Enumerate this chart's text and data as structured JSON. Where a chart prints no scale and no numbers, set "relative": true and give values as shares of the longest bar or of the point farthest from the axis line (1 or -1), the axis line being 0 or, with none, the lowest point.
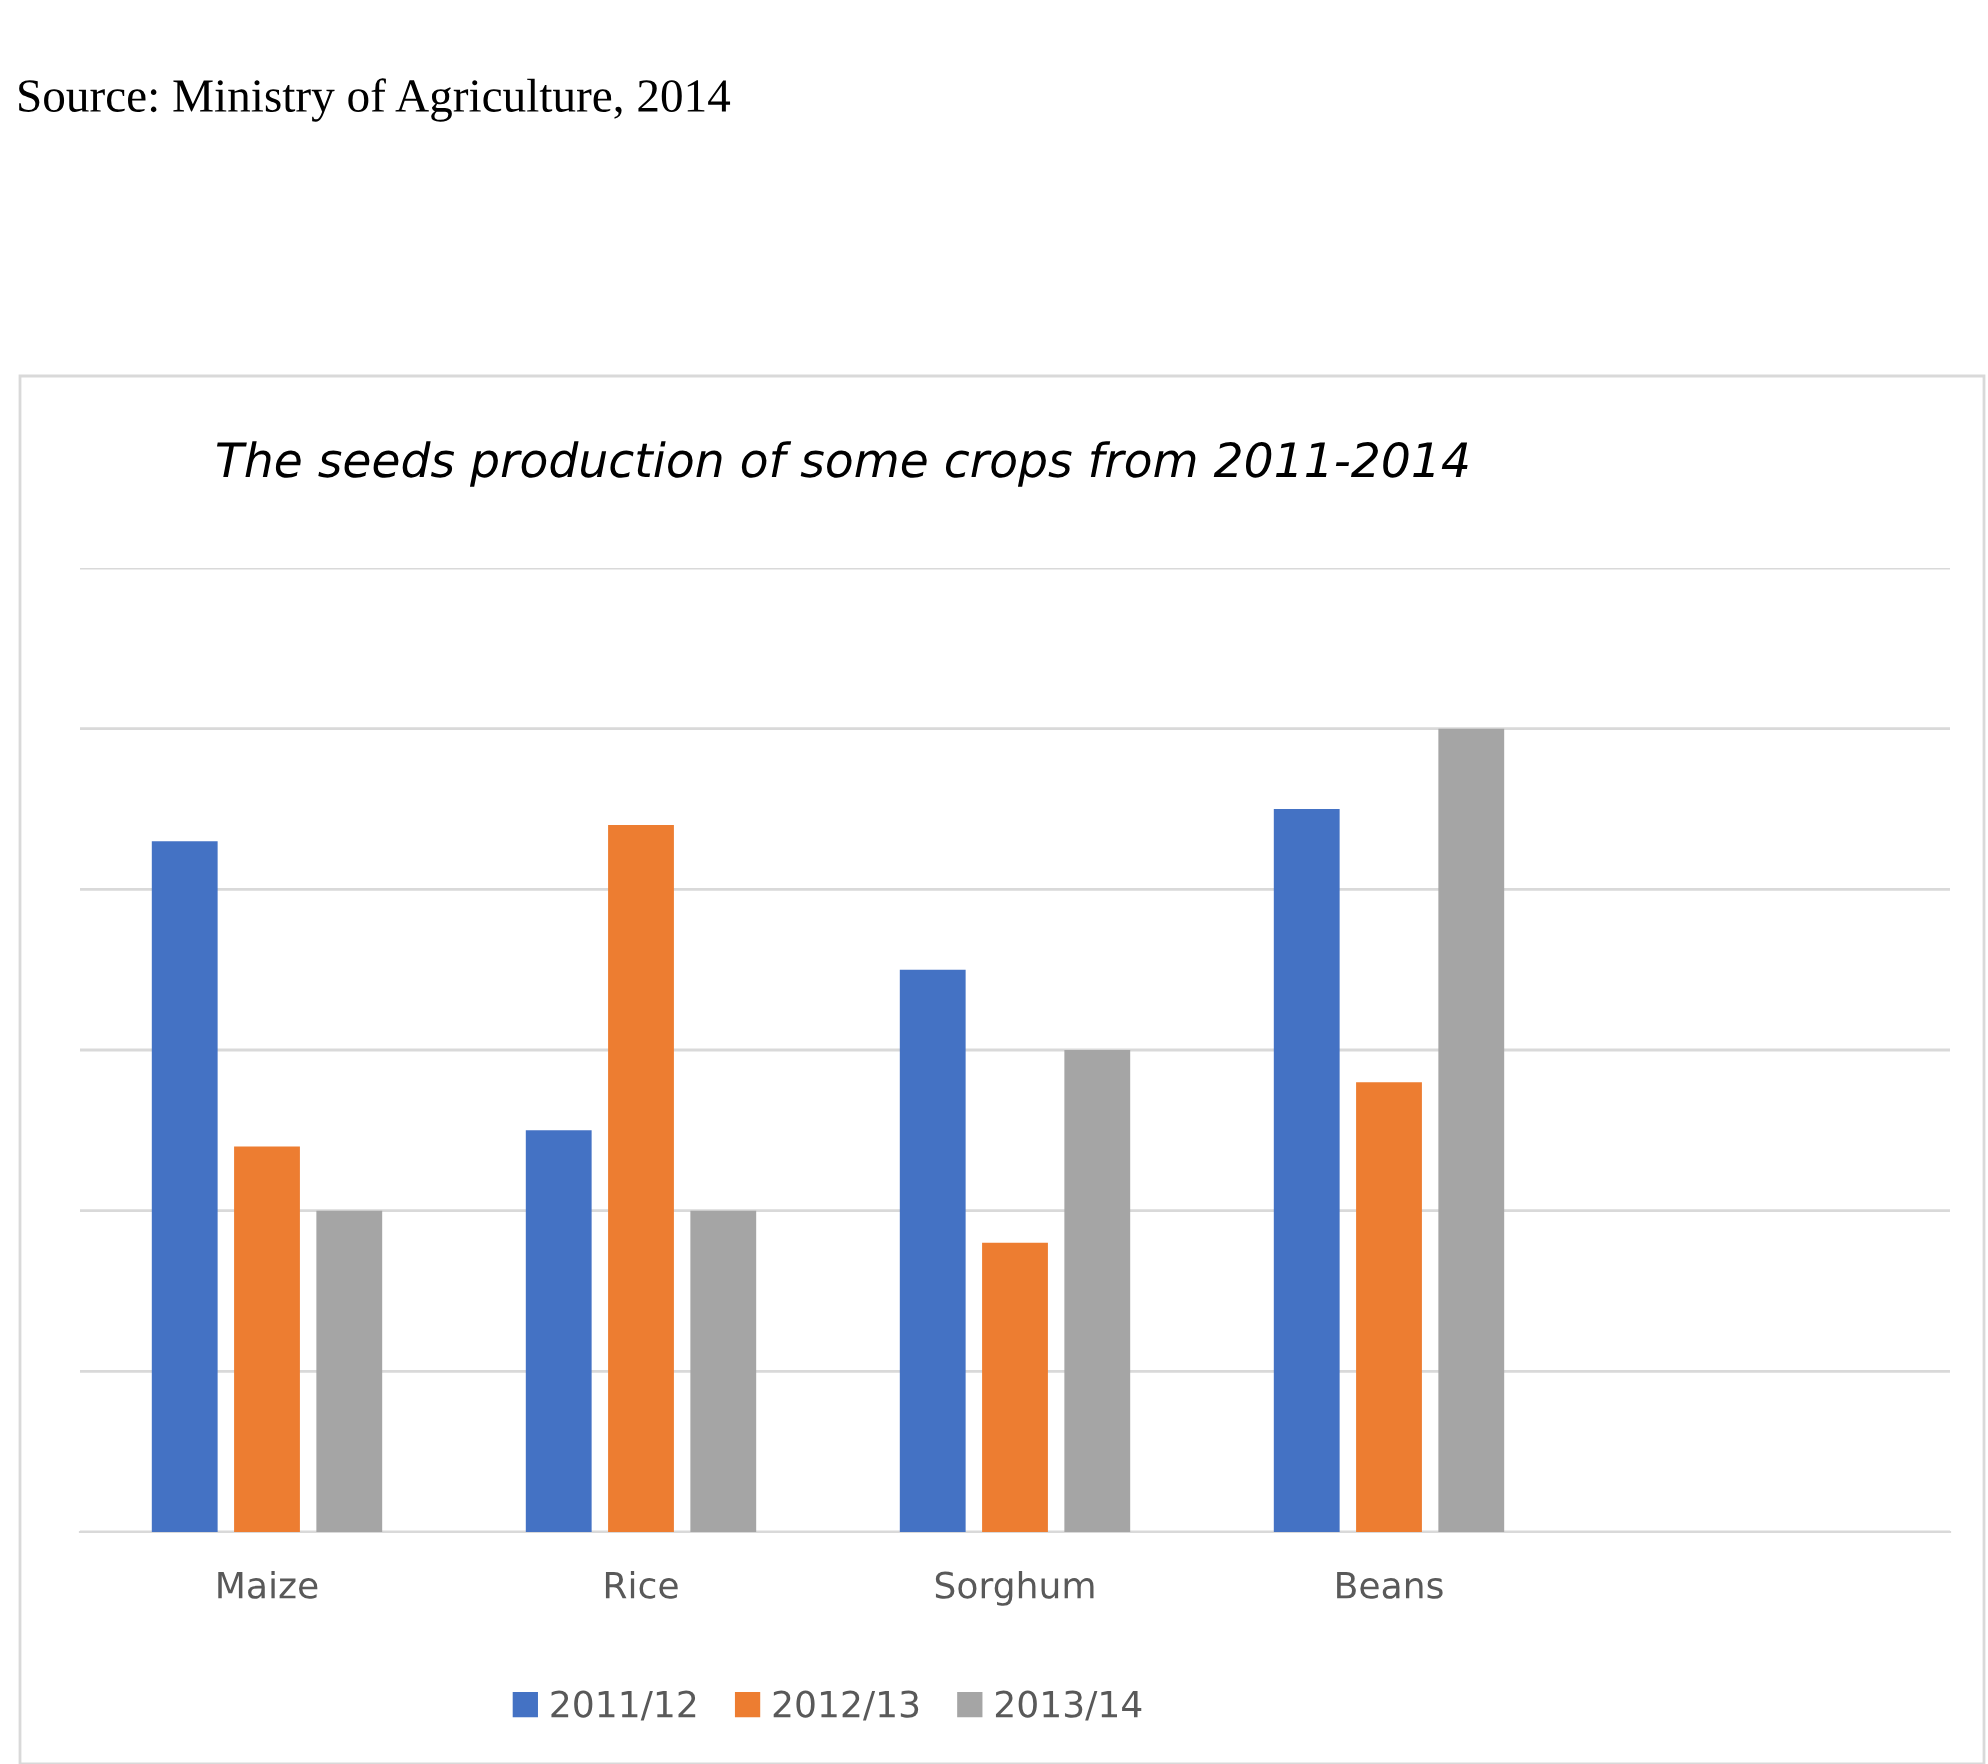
{
  "chart_data": {
    "type": "bar",
    "title": "The seeds production of some crops from 2011-2014",
    "categories": [
      "Maize",
      "Rice",
      "Sorghum",
      "Beans"
    ],
    "relative": true,
    "series": [
      {
        "name": "2011/12",
        "color": "#4472c4",
        "values": [
          0.86,
          0.5,
          0.7,
          0.9
        ]
      },
      {
        "name": "2012/13",
        "color": "#ed7d31",
        "values": [
          0.48,
          0.88,
          0.36,
          0.56
        ]
      },
      {
        "name": "2013/14",
        "color": "#a5a5a5",
        "values": [
          0.4,
          0.4,
          0.6,
          1.0
        ]
      }
    ],
    "grid": "y",
    "legend": "bottom",
    "annotations": [
      "Source: Ministry of Agriculture, 2014"
    ]
  }
}
